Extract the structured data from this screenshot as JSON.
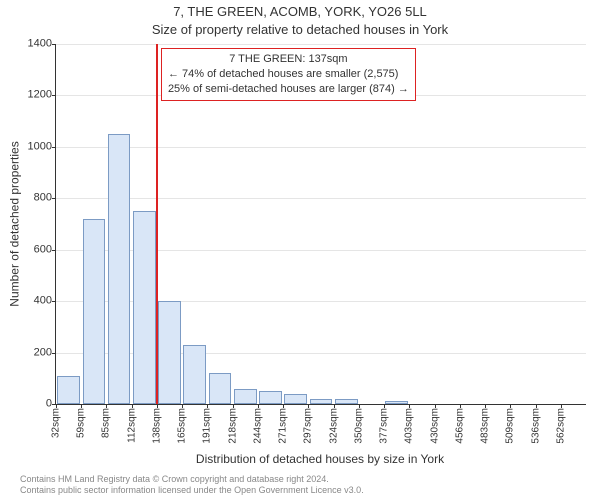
{
  "chart": {
    "type": "histogram",
    "title_line1": "7, THE GREEN, ACOMB, YORK, YO26 5LL",
    "title_line2": "Size of property relative to detached houses in York",
    "x_axis_label": "Distribution of detached houses by size in York",
    "y_axis_label": "Number of detached properties",
    "background_color": "#ffffff",
    "grid_color": "#e5e5e5",
    "axis_color": "#333333",
    "bar_fill": "#d9e6f7",
    "bar_stroke": "#7c9bc4",
    "ylim": [
      0,
      1400
    ],
    "ytick_step": 200,
    "yticks": [
      0,
      200,
      400,
      600,
      800,
      1000,
      1200,
      1400
    ],
    "xtick_labels": [
      "32sqm",
      "59sqm",
      "85sqm",
      "112sqm",
      "138sqm",
      "165sqm",
      "191sqm",
      "218sqm",
      "244sqm",
      "271sqm",
      "297sqm",
      "324sqm",
      "350sqm",
      "377sqm",
      "403sqm",
      "430sqm",
      "456sqm",
      "483sqm",
      "509sqm",
      "536sqm",
      "562sqm"
    ],
    "bars": [
      110,
      720,
      1050,
      750,
      400,
      230,
      120,
      60,
      50,
      40,
      20,
      18,
      0,
      10,
      0,
      0,
      0,
      0,
      0,
      0,
      0
    ],
    "bar_width_ratio": 0.9,
    "marker": {
      "position_bin_index": 4,
      "color": "#dd2222",
      "annotation_lines": [
        "7 THE GREEN: 137sqm",
        "← 74% of detached houses are smaller (2,575)",
        "25% of semi-detached houses are larger (874) →"
      ]
    }
  },
  "footer": {
    "line1": "Contains HM Land Registry data © Crown copyright and database right 2024.",
    "line2": "Contains public sector information licensed under the Open Government Licence v3.0."
  },
  "typography": {
    "title_fontsize": 13,
    "axis_label_fontsize": 12,
    "tick_fontsize": 11,
    "xtick_fontsize": 10,
    "annotation_fontsize": 11,
    "footer_fontsize": 9
  }
}
